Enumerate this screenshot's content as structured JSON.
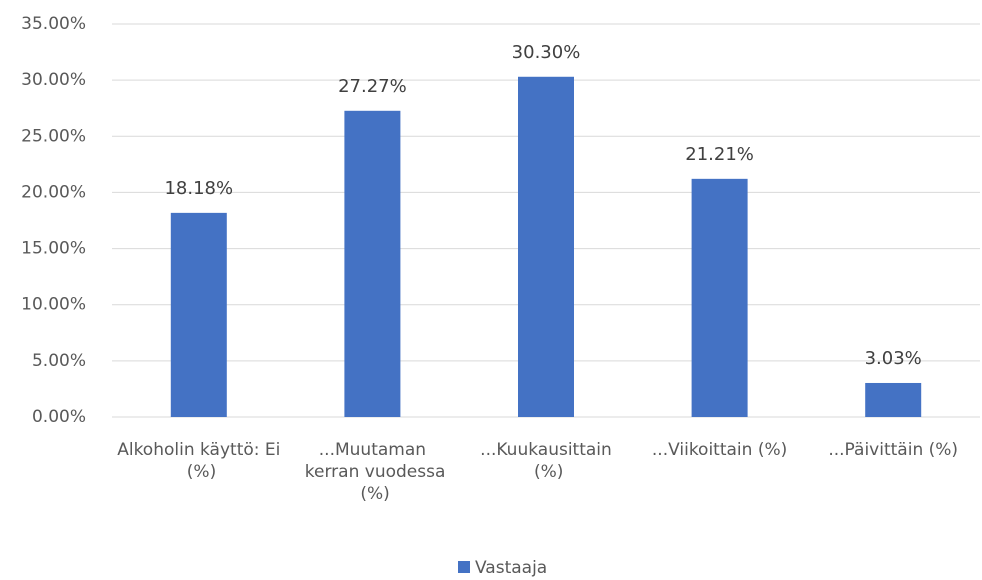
{
  "chart_data": {
    "type": "bar",
    "categories": [
      "Alkoholin käyttö: Ei (%)",
      "...Muutaman kerran vuodessa (%)",
      "...Kuukausittain (%)",
      "...Viikoittain (%)",
      "...Päivittäin (%)"
    ],
    "series": [
      {
        "name": "Vastaaja",
        "color": "#4472c4",
        "values": [
          18.18,
          27.27,
          30.3,
          21.21,
          3.03
        ],
        "value_labels": [
          "18.18%",
          "27.27%",
          "30.30%",
          "21.21%",
          "3.03%"
        ]
      }
    ],
    "ylim": [
      0,
      35
    ],
    "yticks": [
      {
        "value": 0,
        "label": "0.00%"
      },
      {
        "value": 5,
        "label": "5.00%"
      },
      {
        "value": 10,
        "label": "10.00%"
      },
      {
        "value": 15,
        "label": "15.00%"
      },
      {
        "value": 20,
        "label": "20.00%"
      },
      {
        "value": 25,
        "label": "25.00%"
      },
      {
        "value": 30,
        "label": "30.00%"
      },
      {
        "value": 35,
        "label": "35.00%"
      }
    ],
    "grid": true,
    "legend": "bottom"
  }
}
